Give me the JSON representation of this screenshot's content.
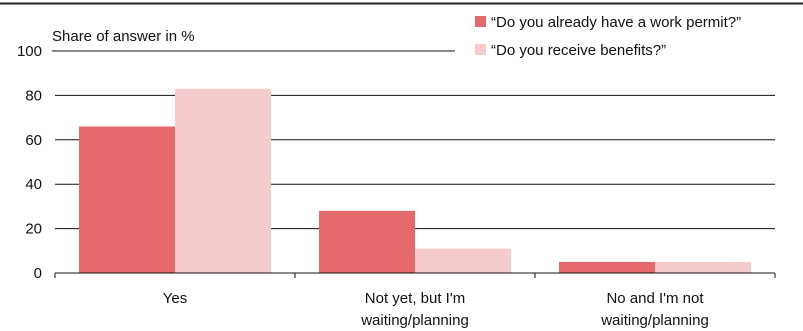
{
  "chart_data": {
    "type": "bar",
    "ylabel": "Share of answer in %",
    "ylim": [
      0,
      100
    ],
    "yticks": [
      0,
      20,
      40,
      60,
      80,
      100
    ],
    "grid": true,
    "legend_position": "top-right",
    "categories": [
      [
        "Yes"
      ],
      [
        "Not yet, but I'm",
        "waiting/planning"
      ],
      [
        "No and I'm not",
        "waiting/planning"
      ]
    ],
    "series": [
      {
        "name": "“Do you already have a work permit?”",
        "color": "#e4696a",
        "values": [
          66,
          28,
          5
        ]
      },
      {
        "name": "“Do you receive benefits?”",
        "color": "#f6cbcc",
        "values": [
          83,
          11,
          5
        ]
      }
    ]
  }
}
